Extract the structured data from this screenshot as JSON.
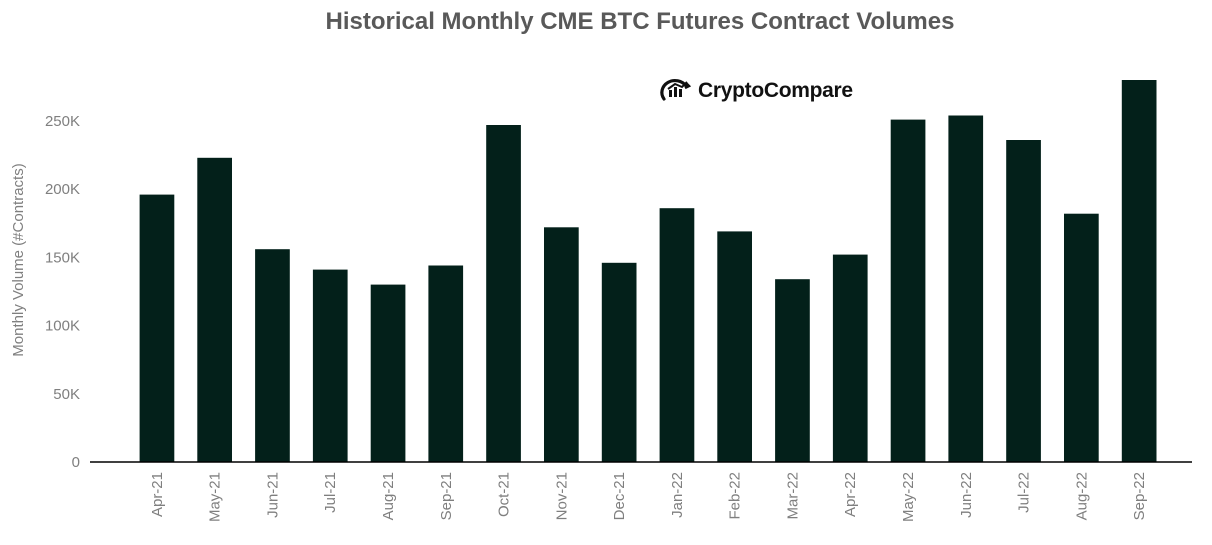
{
  "chart_data": {
    "type": "bar",
    "title": "Historical Monthly CME BTC Futures Contract Volumes",
    "ylabel": "Monthly Volume (#Contracts)",
    "xlabel": "",
    "categories": [
      "Apr-21",
      "May-21",
      "Jun-21",
      "Jul-21",
      "Aug-21",
      "Sep-21",
      "Oct-21",
      "Nov-21",
      "Dec-21",
      "Jan-22",
      "Feb-22",
      "Mar-22",
      "Apr-22",
      "May-22",
      "Jun-22",
      "Jul-22",
      "Aug-22",
      "Sep-22"
    ],
    "values": [
      196000,
      223000,
      156000,
      141000,
      130000,
      144000,
      247000,
      172000,
      146000,
      186000,
      169000,
      134000,
      152000,
      251000,
      254000,
      236000,
      182000,
      280000
    ],
    "ylim": [
      0,
      280000
    ],
    "yticks": [
      0,
      50000,
      100000,
      150000,
      200000,
      250000
    ],
    "ytick_labels": [
      "0",
      "50K",
      "100K",
      "150K",
      "200K",
      "250K"
    ],
    "bar_color": "#03201A",
    "grid": false,
    "legend": "none"
  },
  "logo": {
    "text": "CryptoCompare",
    "icon": "cryptocompare-logo-icon"
  }
}
